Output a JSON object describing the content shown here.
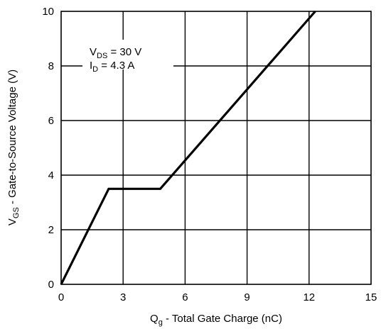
{
  "chart_data": {
    "type": "line",
    "title": "",
    "xlabel": {
      "symbol": "Q",
      "subscript": "g",
      "text": " - Total Gate Charge (nC)"
    },
    "ylabel": {
      "symbol": "V",
      "subscript": "GS",
      "text": " - Gate-to-Source Voltage (V)"
    },
    "xlim": [
      0,
      15
    ],
    "ylim": [
      0,
      10
    ],
    "xticks": [
      0,
      3,
      6,
      9,
      12,
      15
    ],
    "yticks": [
      0,
      2,
      4,
      6,
      8,
      10
    ],
    "grid": true,
    "series": [
      {
        "x": [
          0,
          2.3,
          4.8,
          12.3
        ],
        "y": [
          0,
          3.5,
          3.5,
          10
        ]
      }
    ],
    "annotations": [
      {
        "symbol": "V",
        "subscript": "DS",
        "text": " = 30 V"
      },
      {
        "symbol": "I",
        "subscript": "D",
        "text": " = 4.3 A"
      }
    ],
    "colors": {
      "line": "#000000",
      "grid": "#000000",
      "background": "#ffffff"
    }
  }
}
